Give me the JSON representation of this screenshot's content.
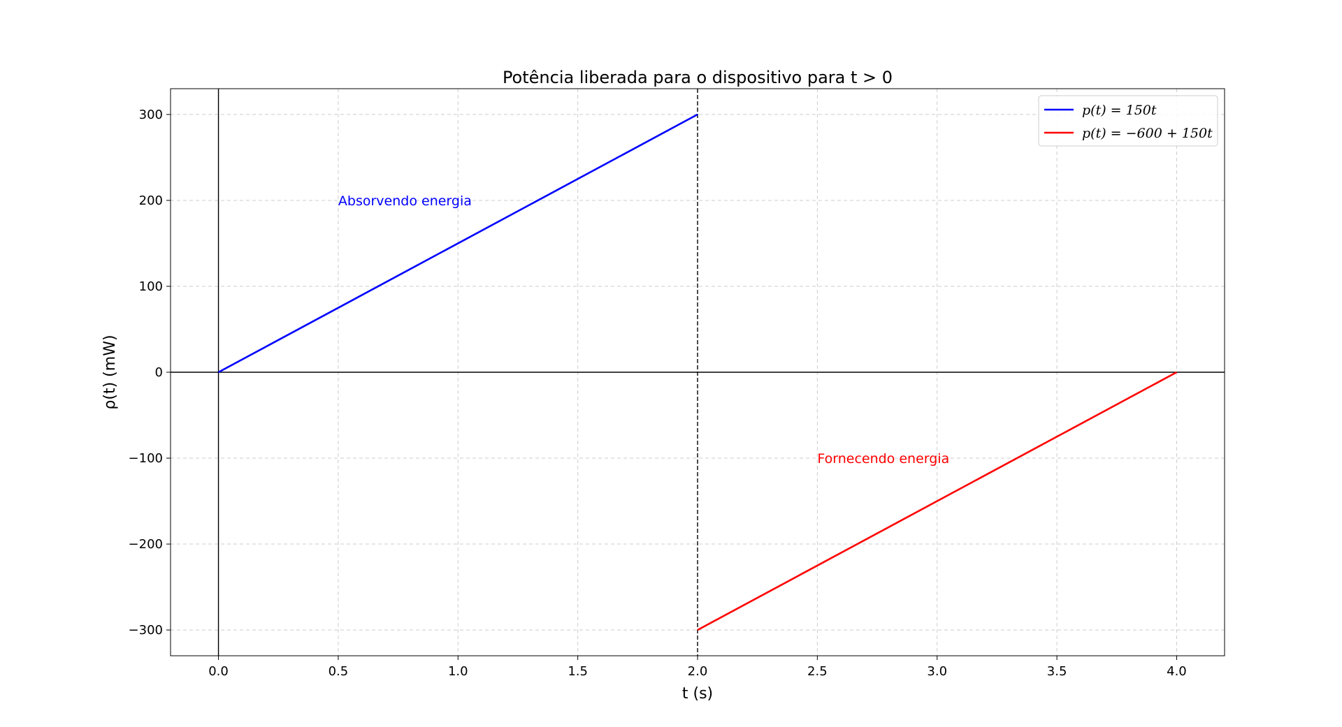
{
  "chart_data": {
    "type": "line",
    "title": "Potência liberada para o dispositivo para t > 0",
    "xlabel": "t (s)",
    "ylabel": "ρ(t) (mW)",
    "xlim": [
      -0.2,
      4.2
    ],
    "ylim": [
      -330,
      330
    ],
    "xticks": [
      0.0,
      0.5,
      1.0,
      1.5,
      2.0,
      2.5,
      3.0,
      3.5,
      4.0
    ],
    "xtick_labels": [
      "0.0",
      "0.5",
      "1.0",
      "1.5",
      "2.0",
      "2.5",
      "3.0",
      "3.5",
      "4.0"
    ],
    "yticks": [
      300,
      200,
      100,
      0,
      -100,
      -200,
      -300
    ],
    "ytick_labels": [
      "300",
      "200",
      "100",
      "0",
      "−100",
      "−200",
      "−300"
    ],
    "grid": true,
    "legend_position": "top-right",
    "series": [
      {
        "name": "p(t) = 150t",
        "color": "#0000ff",
        "x": [
          0,
          2
        ],
        "y": [
          0,
          300
        ]
      },
      {
        "name": "p(t) = −600 + 150t",
        "color": "#ff0000",
        "x": [
          2,
          4
        ],
        "y": [
          -300,
          0
        ]
      }
    ],
    "reference_lines": [
      {
        "orientation": "horizontal",
        "value": 0,
        "style": "solid",
        "color": "#000000"
      },
      {
        "orientation": "vertical",
        "value": 0,
        "style": "solid",
        "color": "#000000"
      },
      {
        "orientation": "vertical",
        "value": 2,
        "style": "dashed",
        "color": "#000000"
      }
    ],
    "annotations": [
      {
        "text": "Absorvendo energia",
        "x": 0.5,
        "y": 200,
        "color": "#0000ff"
      },
      {
        "text": "Fornecendo energia",
        "x": 2.5,
        "y": -100,
        "color": "#ff0000"
      }
    ]
  }
}
